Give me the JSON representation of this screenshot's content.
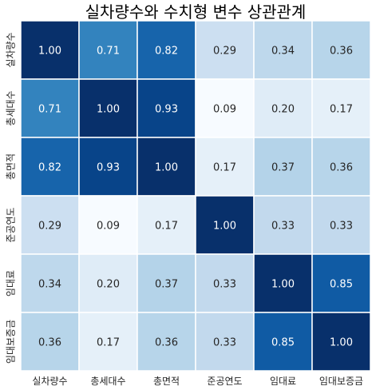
{
  "chart_data": {
    "type": "heatmap",
    "title": "실차량수와 수치형 변수 상관관계",
    "xlabel": "",
    "ylabel": "",
    "x_labels": [
      "실차량수",
      "총세대수",
      "총면적",
      "준공연도",
      "임대료",
      "임대보증금"
    ],
    "y_labels": [
      "실차량수",
      "총세대수",
      "총면적",
      "준공연도",
      "임대료",
      "임대보증금"
    ],
    "values": [
      [
        1.0,
        0.71,
        0.82,
        0.29,
        0.34,
        0.36
      ],
      [
        0.71,
        1.0,
        0.93,
        0.09,
        0.2,
        0.17
      ],
      [
        0.82,
        0.93,
        1.0,
        0.17,
        0.37,
        0.36
      ],
      [
        0.29,
        0.09,
        0.17,
        1.0,
        0.33,
        0.33
      ],
      [
        0.34,
        0.2,
        0.37,
        0.33,
        1.0,
        0.85
      ],
      [
        0.36,
        0.17,
        0.36,
        0.33,
        0.85,
        1.0
      ]
    ],
    "value_range": [
      0.09,
      1.0
    ],
    "colormap": "Blues",
    "colors": {
      "low": "#f7fbff",
      "high": "#08306b",
      "text_dark": "#262626",
      "text_light": "#ffffff",
      "cell_border": "#ffffff"
    },
    "colorbar": false,
    "annotations": true,
    "grid": false
  }
}
